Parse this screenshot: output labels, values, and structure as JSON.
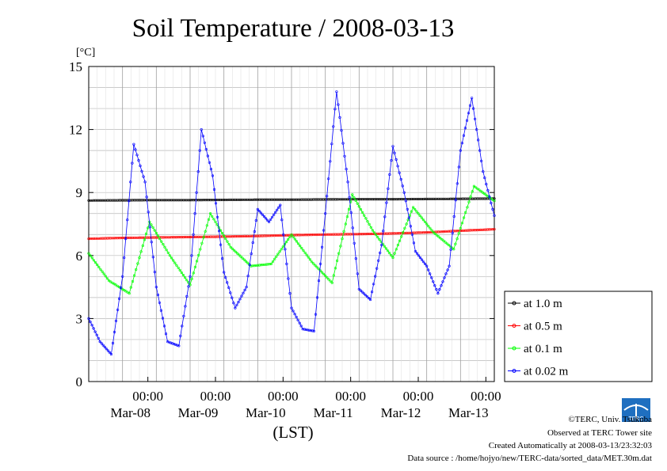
{
  "chart_data": {
    "type": "line",
    "title": "Soil Temperature / 2008-03-13",
    "ylabel": "[°C]",
    "xlabel": "(LST)",
    "ylim": [
      0,
      15
    ],
    "xlim_hours": [
      0,
      144
    ],
    "yticks": [
      "0",
      "3",
      "6",
      "9",
      "12",
      "15"
    ],
    "xticks": [
      {
        "time": "00:00",
        "date": "Mar-08"
      },
      {
        "time": "00:00",
        "date": "Mar-09"
      },
      {
        "time": "00:00",
        "date": "Mar-10"
      },
      {
        "time": "00:00",
        "date": "Mar-11"
      },
      {
        "time": "00:00",
        "date": "Mar-12"
      },
      {
        "time": "00:00",
        "date": "Mar-13"
      }
    ],
    "grid": true,
    "legend_position": "right",
    "series": [
      {
        "name": "at 1.0 m",
        "color": "#000000",
        "values": [
          8.62,
          8.63,
          8.64,
          8.64,
          8.65,
          8.66,
          8.66,
          8.67,
          8.68,
          8.68,
          8.69,
          8.7,
          8.71
        ]
      },
      {
        "name": "at 0.5 m",
        "color": "#ff0000",
        "values": [
          6.8,
          6.84,
          6.86,
          6.88,
          6.9,
          6.93,
          6.97,
          7.0,
          7.02,
          7.05,
          7.1,
          7.18,
          7.25
        ]
      },
      {
        "name": "at 0.1 m",
        "color": "#00ff00",
        "values": [
          6.1,
          4.8,
          4.2,
          7.6,
          6.0,
          4.6,
          8.0,
          6.4,
          5.5,
          5.6,
          7.0,
          5.7,
          4.7,
          8.9,
          7.2,
          5.9,
          8.3,
          7.1,
          6.3,
          9.3,
          8.6
        ]
      },
      {
        "name": "at 0.02 m",
        "color": "#0000ff",
        "values": [
          3.0,
          1.9,
          1.3,
          5.0,
          11.3,
          9.5,
          4.5,
          1.9,
          1.7,
          5.0,
          12.0,
          9.8,
          5.2,
          3.5,
          4.5,
          8.2,
          7.6,
          8.4,
          3.5,
          2.5,
          2.4,
          8.0,
          13.8,
          9.5,
          4.4,
          3.9,
          6.5,
          11.2,
          9.0,
          6.2,
          5.5,
          4.2,
          5.5,
          11.0,
          13.5,
          10.0,
          7.9
        ]
      }
    ]
  },
  "footer": {
    "copyright": "©TERC, Univ. Tsukuba",
    "observed": "Observed at TERC Tower site",
    "created": "Created Automatically at 2008-03-13/23:32:03",
    "source": "Data source : /home/hojyo/new/TERC-data/sorted_data/MET.30m.dat"
  },
  "logo_text": "TERC"
}
